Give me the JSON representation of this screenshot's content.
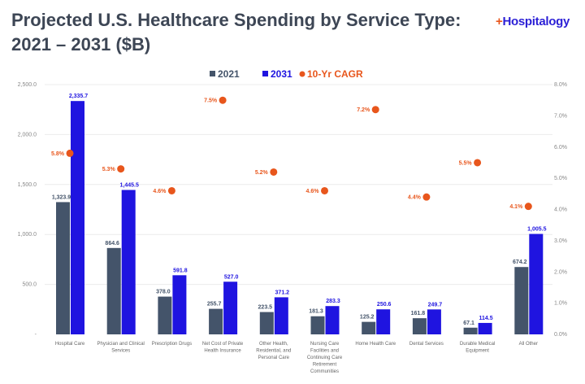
{
  "title": "Projected U.S. Healthcare Spending by Service Type: 2021 – 2031 ($B)",
  "logo": "Hospitalogy",
  "colors": {
    "2021": "#44546a",
    "2031": "#1f14e0",
    "cagr": "#e8561c"
  },
  "chart_data": {
    "type": "bar",
    "title": "Projected U.S. Healthcare Spending by Service Type: 2021 – 2031 ($B)",
    "categories": [
      [
        "Hospital Care"
      ],
      [
        "Physician and Clinical",
        "Services"
      ],
      [
        "Prescription Drugs"
      ],
      [
        "Net Cost of Private",
        "Health Insurance"
      ],
      [
        "Other Health,",
        "Residential, and",
        "Personal Care"
      ],
      [
        "Nursing Care",
        "Facilities and",
        "Continuing Care",
        "Retirement",
        "Communities"
      ],
      [
        "Home Health Care"
      ],
      [
        "Dental Services"
      ],
      [
        "Durable Medical",
        "Equipment"
      ],
      [
        "All Other"
      ]
    ],
    "series": [
      {
        "name": "2021",
        "type": "bar",
        "axis": "left",
        "values": [
          1323.9,
          864.6,
          378.0,
          255.7,
          223.5,
          181.3,
          125.2,
          161.8,
          67.1,
          674.2
        ],
        "labels": [
          "1,323.9",
          "864.6",
          "378.0",
          "255.7",
          "223.5",
          "181.3",
          "125.2",
          "161.8",
          "67.1",
          "674.2"
        ]
      },
      {
        "name": "2031",
        "type": "bar",
        "axis": "left",
        "values": [
          2335.7,
          1445.5,
          591.8,
          527.0,
          371.2,
          283.3,
          250.6,
          249.7,
          114.5,
          1005.5
        ],
        "labels": [
          "2,335.7",
          "1,445.5",
          "591.8",
          "527.0",
          "371.2",
          "283.3",
          "250.6",
          "249.7",
          "114.5",
          "1,005.5"
        ]
      },
      {
        "name": "10-Yr CAGR",
        "type": "scatter",
        "axis": "right",
        "values": [
          5.8,
          5.3,
          4.6,
          7.5,
          5.2,
          4.6,
          7.2,
          4.4,
          5.5,
          4.1
        ],
        "labels": [
          "5.8%",
          "5.3%",
          "4.6%",
          "7.5%",
          "5.2%",
          "4.6%",
          "7.2%",
          "4.4%",
          "5.5%",
          "4.1%"
        ]
      }
    ],
    "left_axis": {
      "ylim": [
        0,
        2500
      ],
      "ticks": [
        "-",
        "500.0",
        "1,000.0",
        "1,500.0",
        "2,000.0",
        "2,500.0"
      ]
    },
    "right_axis": {
      "ylim": [
        0,
        8
      ],
      "ticks": [
        "0.0%",
        "1.0%",
        "2.0%",
        "3.0%",
        "4.0%",
        "5.0%",
        "6.0%",
        "7.0%",
        "8.0%"
      ]
    },
    "grid": true,
    "legend": "top-center"
  }
}
